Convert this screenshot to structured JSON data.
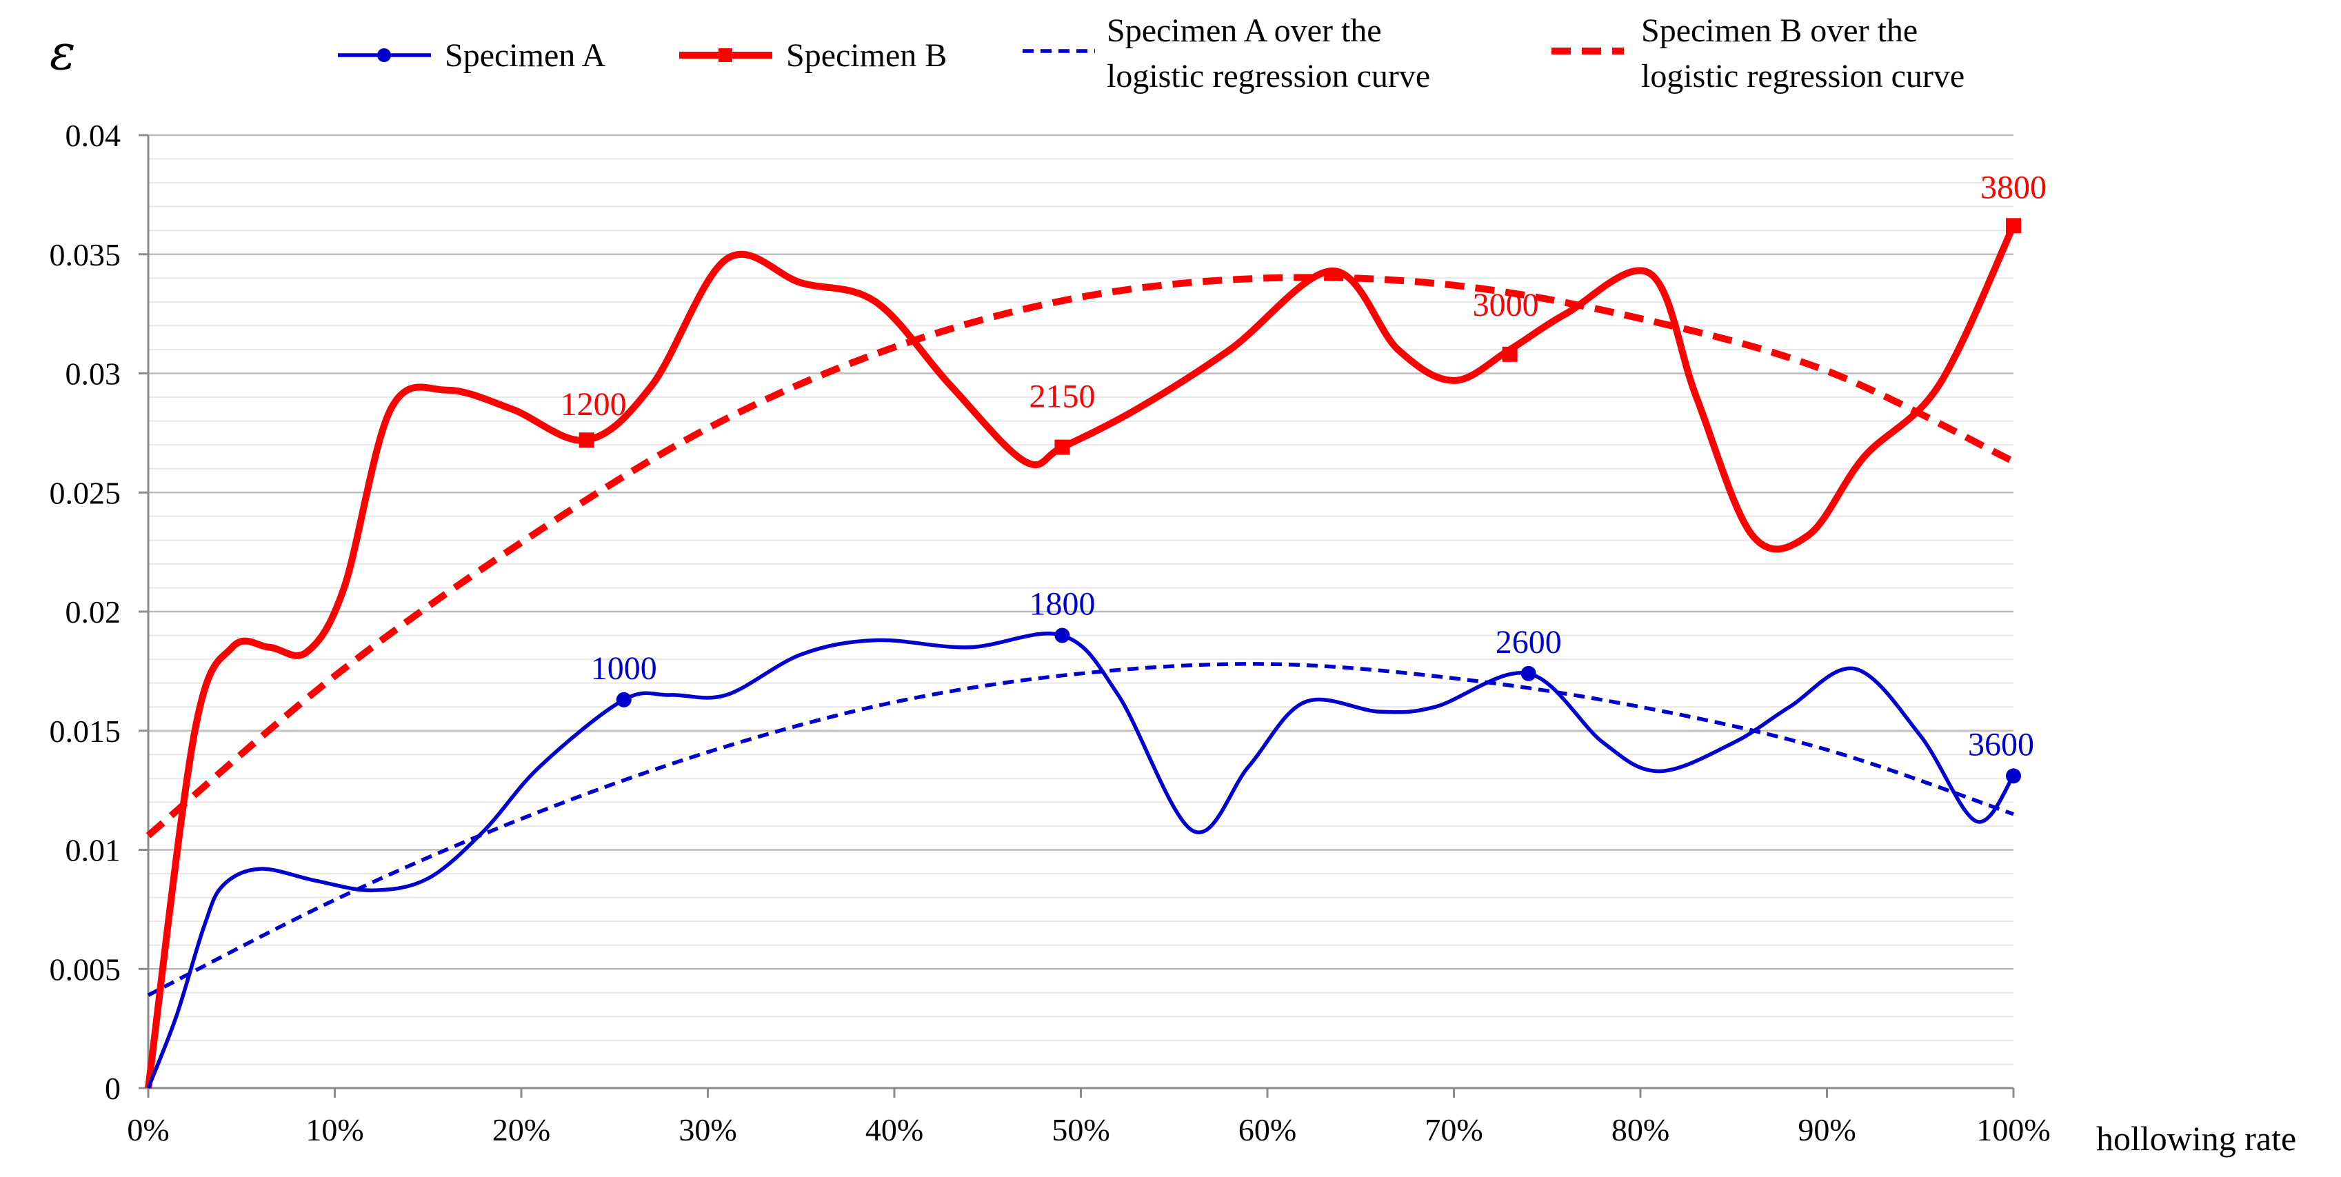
{
  "chart_data": {
    "type": "line",
    "title": "",
    "xlabel": "hollowing rate",
    "ylabel": "ε",
    "xlim": [
      0,
      100
    ],
    "ylim": [
      0,
      0.04
    ],
    "x_ticks": [
      0,
      10,
      20,
      30,
      40,
      50,
      60,
      70,
      80,
      90,
      100
    ],
    "x_tick_labels": [
      "0%",
      "10%",
      "20%",
      "30%",
      "40%",
      "50%",
      "60%",
      "70%",
      "80%",
      "90%",
      "100%"
    ],
    "y_ticks": [
      0,
      0.005,
      0.01,
      0.015,
      0.02,
      0.025,
      0.03,
      0.035,
      0.04
    ],
    "y_tick_labels": [
      "0",
      "0.005",
      "0.01",
      "0.015",
      "0.02",
      "0.025",
      "0.03",
      "0.035",
      "0.04"
    ],
    "grid": true,
    "legend_position": "top",
    "series": [
      {
        "name": "Specimen A",
        "color": "#0000CC",
        "style": "solid-marker-circle",
        "x": [
          0,
          1.5,
          3,
          4,
          6,
          9,
          12,
          15,
          18,
          21,
          25.5,
          28,
          31,
          35,
          39,
          44,
          49,
          52,
          56,
          59,
          62,
          66,
          69,
          74,
          78,
          81,
          85,
          88,
          91.5,
          95,
          98,
          100
        ],
        "y": [
          0,
          0.003,
          0.0068,
          0.0085,
          0.0092,
          0.0087,
          0.0083,
          0.0088,
          0.0108,
          0.0135,
          0.0163,
          0.0165,
          0.0165,
          0.0182,
          0.0188,
          0.0185,
          0.019,
          0.0165,
          0.0108,
          0.0135,
          0.0162,
          0.0158,
          0.016,
          0.0174,
          0.0145,
          0.0133,
          0.0145,
          0.016,
          0.0176,
          0.0148,
          0.0112,
          0.0131
        ]
      },
      {
        "name": "Specimen B",
        "color": "#FF0000",
        "style": "solid-marker-square",
        "x": [
          0,
          2.5,
          4.5,
          6.5,
          8.5,
          10.5,
          13,
          16,
          19.5,
          23.5,
          27,
          31,
          35,
          39,
          43,
          47,
          49,
          53,
          58,
          63.5,
          67,
          70,
          73,
          76,
          80.5,
          83,
          86,
          89,
          92,
          96,
          100
        ],
        "y": [
          0,
          0.015,
          0.0185,
          0.0185,
          0.0183,
          0.021,
          0.0285,
          0.0293,
          0.0285,
          0.0272,
          0.0295,
          0.0348,
          0.0338,
          0.033,
          0.0295,
          0.0263,
          0.0269,
          0.0285,
          0.031,
          0.0343,
          0.031,
          0.0297,
          0.031,
          0.0325,
          0.0342,
          0.029,
          0.0232,
          0.0232,
          0.0265,
          0.0295,
          0.0362
        ]
      },
      {
        "name": "Specimen A over the logistic regression curve",
        "color": "#0000CC",
        "style": "dashed",
        "x": [
          0,
          10,
          20,
          30,
          40,
          50,
          60,
          70,
          80,
          90,
          100
        ],
        "y": [
          0.0039,
          0.0079,
          0.0113,
          0.0141,
          0.0162,
          0.0174,
          0.0178,
          0.0172,
          0.016,
          0.0142,
          0.0115
        ]
      },
      {
        "name": "Specimen B over the logistic regression curve",
        "color": "#FF0000",
        "style": "dashed-thick",
        "x": [
          0,
          10,
          20,
          30,
          40,
          50,
          60,
          70,
          80,
          90,
          100
        ],
        "y": [
          0.0106,
          0.0173,
          0.0229,
          0.0277,
          0.0311,
          0.0332,
          0.034,
          0.0337,
          0.0323,
          0.0301,
          0.0263
        ]
      }
    ],
    "annotations": [
      {
        "series": "Specimen A",
        "x": 25.5,
        "y": 0.0163,
        "text": "1000"
      },
      {
        "series": "Specimen A",
        "x": 49,
        "y": 0.019,
        "text": "1800"
      },
      {
        "series": "Specimen A",
        "x": 74,
        "y": 0.0174,
        "text": "2600"
      },
      {
        "series": "Specimen A",
        "x": 100,
        "y": 0.0131,
        "text": "3600"
      },
      {
        "series": "Specimen B",
        "x": 23.5,
        "y": 0.0272,
        "text": "1200"
      },
      {
        "series": "Specimen B",
        "x": 49,
        "y": 0.0269,
        "text": "2150"
      },
      {
        "series": "Specimen B",
        "x": 73,
        "y": 0.0308,
        "text": "3000"
      },
      {
        "series": "Specimen B",
        "x": 100,
        "y": 0.0362,
        "text": "3800"
      }
    ]
  },
  "legend": {
    "items": [
      {
        "label_lines": [
          "Specimen A"
        ],
        "color": "#0000CC",
        "style": "solid-marker-circle"
      },
      {
        "label_lines": [
          "Specimen B"
        ],
        "color": "#FF0000",
        "style": "solid-marker-square"
      },
      {
        "label_lines": [
          "Specimen A over the",
          "logistic  regression curve"
        ],
        "color": "#0000CC",
        "style": "dashed"
      },
      {
        "label_lines": [
          "Specimen B over the",
          "logistic  regression curve"
        ],
        "color": "#FF0000",
        "style": "dashed-thick"
      }
    ]
  }
}
